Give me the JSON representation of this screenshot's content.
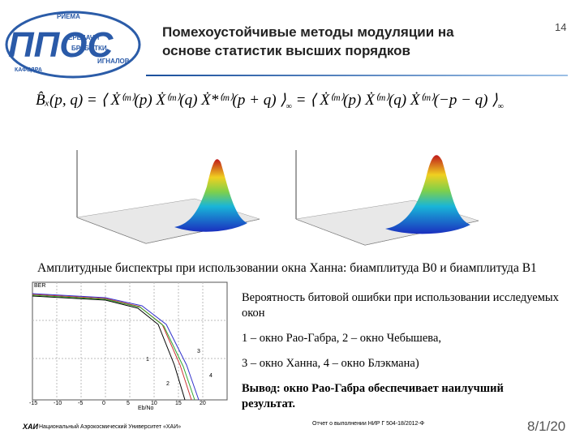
{
  "logo": {
    "big": "ППОС",
    "words": [
      "РИЕМА",
      "ЕРЕДАЧИ",
      "БРАБОТКИ",
      "ИГНАЛОВ"
    ],
    "dept": "КАФЕДРА"
  },
  "header": {
    "title_line1": "Помехоустойчивые методы модуляции на",
    "title_line2": "основе статистик высших порядков",
    "slide_number": "14"
  },
  "formula": {
    "lhs": "B̂ₓ(p, q) = ",
    "mid": "⟨ Ẋ⁽ᵐ⁾(p) Ẋ⁽ᵐ⁾(q) Ẋ*⁽ᵐ⁾(p + q) ⟩",
    "eq": " = ",
    "rhs": "⟨ Ẋ⁽ᵐ⁾(p) Ẋ⁽ᵐ⁾(q) Ẋ⁽ᵐ⁾(−p − q) ⟩",
    "sub": "∞"
  },
  "caption": "Амплитудные биспектры при использовании окна Ханна: биамплитуда B0 и биамплитуда B1",
  "ber_plot": {
    "ylabel": "BER",
    "xlabel": "Eb/No",
    "xticks": [
      "-15",
      "-10",
      "-5",
      "0",
      "5",
      "10",
      "15",
      "20"
    ],
    "curve_labels": [
      "1",
      "2",
      "3",
      "4"
    ]
  },
  "text": {
    "p1": "Вероятность битовой ошибки при использовании исследуемых окон",
    "p2": "1 – окно Рао-Габра, 2 – окно Чебышева,",
    "p3": "3 – окно Ханна, 4 – окно Блэкмана)",
    "p4": "Вывод: окно Рао-Габра обеспечивает наилучший результат."
  },
  "footer": {
    "logo": "ХАИ",
    "university": "Национальный Аэрокосмический Университет «ХАИ»",
    "report": "Отчет о выполнении НИР Г 504-18/2012-Ф",
    "date": "8/1/20"
  }
}
